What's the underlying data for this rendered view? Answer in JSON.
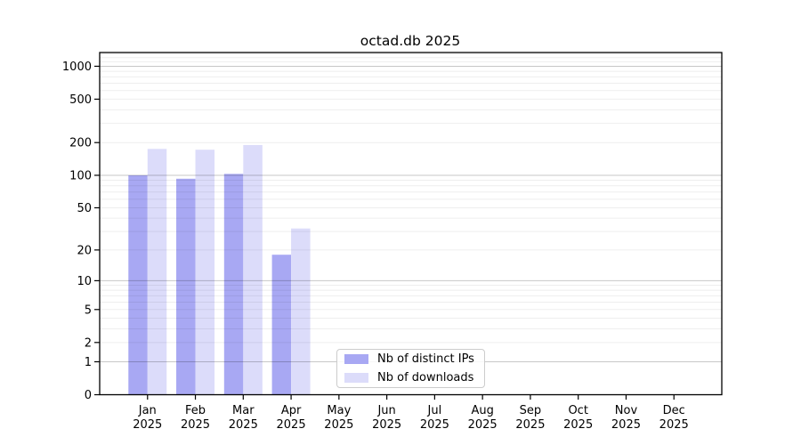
{
  "title": "octad.db 2025",
  "legend": {
    "items": [
      {
        "label": "Nb of distinct IPs",
        "color": "#a8a8f3"
      },
      {
        "label": "Nb of downloads",
        "color": "#dcdcfa"
      }
    ]
  },
  "chart_data": {
    "type": "bar",
    "title": "octad.db 2025",
    "scale": "log1p (log-like axis: 0,1,2,5,10,20,50,100,200,500,1000)",
    "categories": [
      "Jan 2025",
      "Feb 2025",
      "Mar 2025",
      "Apr 2025",
      "May 2025",
      "Jun 2025",
      "Jul 2025",
      "Aug 2025",
      "Sep 2025",
      "Oct 2025",
      "Nov 2025",
      "Dec 2025"
    ],
    "months": [
      "Jan",
      "Feb",
      "Mar",
      "Apr",
      "May",
      "Jun",
      "Jul",
      "Aug",
      "Sep",
      "Oct",
      "Nov",
      "Dec"
    ],
    "year": "2025",
    "series": [
      {
        "name": "Nb of distinct IPs",
        "color": "#a8a8f3",
        "values": [
          100,
          93,
          103,
          18,
          0,
          0,
          0,
          0,
          0,
          0,
          0,
          0
        ]
      },
      {
        "name": "Nb of downloads",
        "color": "#dcdcfa",
        "values": [
          175,
          172,
          190,
          32,
          0,
          0,
          0,
          0,
          0,
          0,
          0,
          0
        ]
      }
    ],
    "y_ticks": [
      0,
      1,
      2,
      5,
      10,
      20,
      50,
      100,
      200,
      500,
      1000
    ],
    "ylim": [
      0,
      1336
    ],
    "grid": true,
    "legend_position": "lower center",
    "colors": {
      "major_gridline": "rgba(0,0,0,0.22)",
      "minor_gridline": "rgba(0,0,0,0.065)",
      "spine": "#000000"
    }
  }
}
